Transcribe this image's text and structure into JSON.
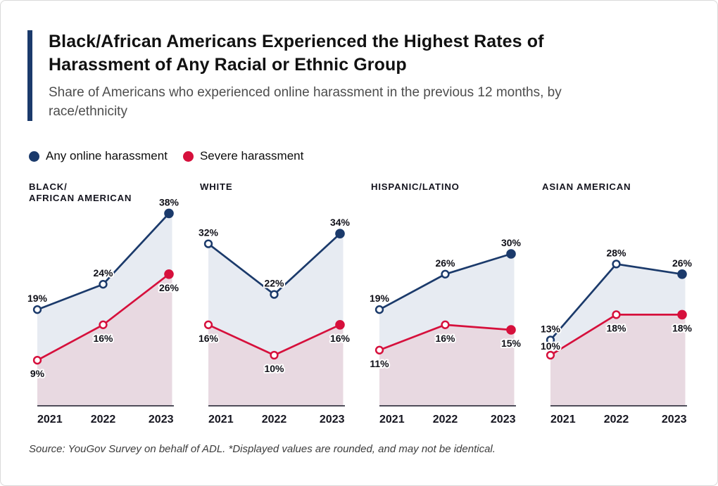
{
  "header": {
    "title": "Black/African Americans Experienced the Highest Rates of\nHarassment of Any Racial or Ethnic Group",
    "subtitle": "Share of Americans who experienced online harassment in the previous 12 months, by\nrace/ethnicity",
    "accent_color": "#1b3a6b"
  },
  "footer": {
    "source": "Source: YouGov Survey on behalf of ADL. *Displayed values are rounded, and may not be identical."
  },
  "chart_data": {
    "type": "line",
    "x": [
      "2021",
      "2022",
      "2023"
    ],
    "unit": "%",
    "ylim": [
      0,
      45
    ],
    "grid": false,
    "legend_position": "top-left",
    "marker_style": {
      "open_years": [
        "2021",
        "2022"
      ],
      "solid_years": [
        "2023"
      ]
    },
    "series_meta": [
      {
        "name": "Any online harassment",
        "color": "#1b3a6b",
        "area_fill": "#e7ebf2",
        "label_side": "above"
      },
      {
        "name": "Severe harassment",
        "color": "#d6103c",
        "area_fill": "#e8d9e1",
        "label_side": "below"
      }
    ],
    "panels": [
      {
        "title": "BLACK/\nAFRICAN AMERICAN",
        "any": [
          19,
          24,
          38
        ],
        "severe": [
          9,
          16,
          26
        ]
      },
      {
        "title": "WHITE",
        "any": [
          32,
          22,
          34
        ],
        "severe": [
          16,
          10,
          16
        ]
      },
      {
        "title": "HISPANIC/LATINO",
        "any": [
          19,
          26,
          30
        ],
        "severe": [
          11,
          16,
          15
        ]
      },
      {
        "title": "ASIAN AMERICAN",
        "any": [
          13,
          28,
          26
        ],
        "severe": [
          10,
          18,
          18
        ],
        "severe_label_pos": [
          "above",
          "below",
          "below"
        ]
      }
    ]
  }
}
